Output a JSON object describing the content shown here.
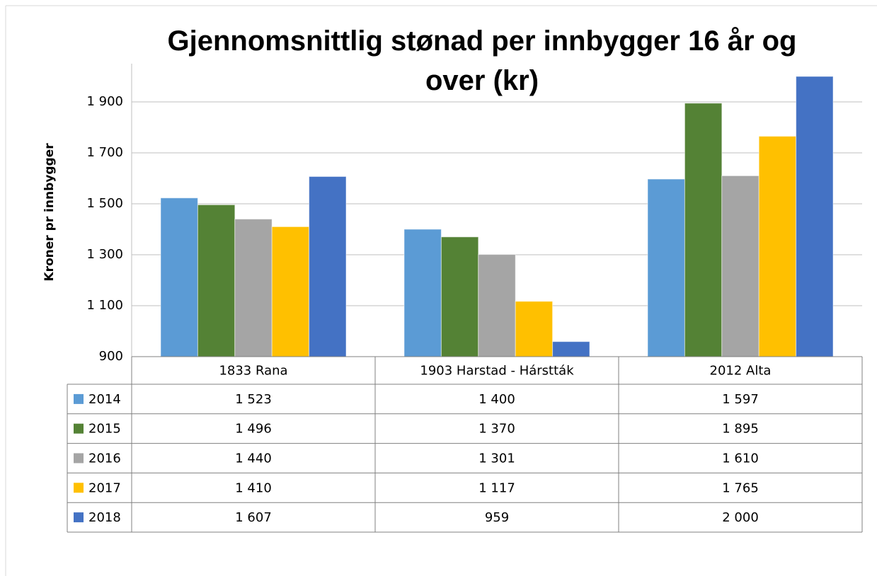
{
  "chart_data": {
    "type": "bar",
    "title": "Gjennomsnittlig stønad per innbygger 16 år og over (kr)",
    "y_label": "Kroner pr innbygger",
    "categories": [
      "1833 Rana",
      "1903 Harstad - Hárstták",
      "2012 Alta"
    ],
    "series": [
      {
        "name": "2014",
        "color": "#5b9bd5",
        "values": [
          1523,
          1400,
          1597
        ],
        "value_labels": [
          "1 523",
          "1 400",
          "1 597"
        ]
      },
      {
        "name": "2015",
        "color": "#548235",
        "values": [
          1496,
          1370,
          1895
        ],
        "value_labels": [
          "1 496",
          "1 370",
          "1 895"
        ]
      },
      {
        "name": "2016",
        "color": "#a5a5a5",
        "values": [
          1440,
          1301,
          1610
        ],
        "value_labels": [
          "1 440",
          "1 301",
          "1 610"
        ]
      },
      {
        "name": "2017",
        "color": "#ffc000",
        "values": [
          1410,
          1117,
          1765
        ],
        "value_labels": [
          "1 410",
          "1 117",
          "1 765"
        ]
      },
      {
        "name": "2018",
        "color": "#4472c4",
        "values": [
          1607,
          959,
          2000
        ],
        "value_labels": [
          "1 607",
          "959",
          "2 000"
        ]
      }
    ],
    "ylim": [
      900,
      2050
    ],
    "yticks": [
      900,
      {
        "value": 1100,
        "label": "1 100"
      },
      {
        "value": 1300,
        "label": "1 300"
      },
      {
        "value": 1500,
        "label": "1 500"
      },
      {
        "value": 1700,
        "label": "1 700"
      },
      {
        "value": 1900,
        "label": "1 900"
      }
    ],
    "grid": true
  }
}
